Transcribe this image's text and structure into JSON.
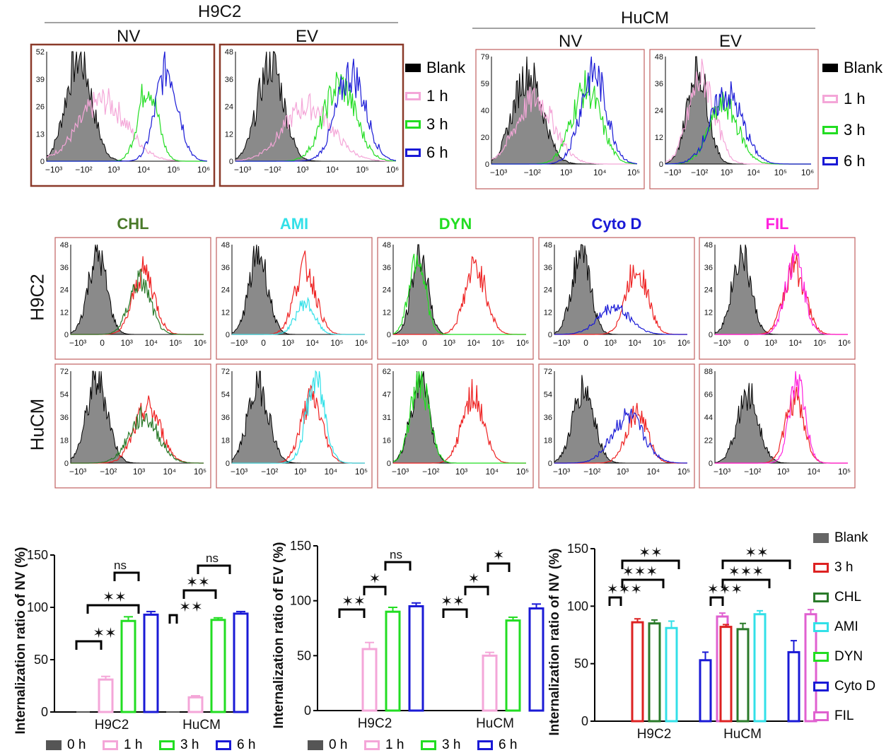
{
  "top_left": {
    "group": "H9C2",
    "panels": [
      "NV",
      "EV"
    ],
    "yticks": [
      [
        52,
        39,
        26,
        13,
        0
      ],
      [
        48,
        36,
        24,
        12,
        0
      ]
    ],
    "xticks": [
      "−10³",
      "−10²",
      "10³",
      "10⁴",
      "10⁵",
      "10⁶"
    ]
  },
  "top_right": {
    "group": "HuCM",
    "panels": [
      "NV",
      "EV"
    ],
    "yticks": [
      [
        79,
        59,
        40,
        20,
        0
      ],
      [
        48,
        36,
        24,
        12,
        0
      ]
    ],
    "xticks_nv": [
      "−10³",
      "−10²",
      "10³",
      "10⁴",
      "10⁵"
    ],
    "xticks_ev": [
      "−10³",
      "−10²",
      "10³",
      "10⁴",
      "10⁵",
      "10⁶"
    ]
  },
  "legend_time": [
    {
      "label": "Blank",
      "color": "#000000"
    },
    {
      "label": "1 h",
      "color": "#f4a6d8"
    },
    {
      "label": "3 h",
      "color": "#22dd22"
    },
    {
      "label": "6 h",
      "color": "#1a1ad6"
    }
  ],
  "middle": {
    "columns": [
      {
        "name": "CHL",
        "color": "#4a7a2a"
      },
      {
        "name": "AMI",
        "color": "#33e0e8"
      },
      {
        "name": "DYN",
        "color": "#22dd22"
      },
      {
        "name": "Cyto D",
        "color": "#1a1ad6"
      },
      {
        "name": "FIL",
        "color": "#ff22dd"
      }
    ],
    "rows": [
      "H9C2",
      "HuCM"
    ],
    "yticks_h9c2": [
      "48",
      "36",
      "24",
      "12",
      "0"
    ],
    "yticks_hucm": [
      [
        "72",
        "54",
        "36",
        "18",
        "0"
      ],
      [
        "72",
        "54",
        "36",
        "18",
        "0"
      ],
      [
        "62",
        "47",
        "31",
        "16",
        "0"
      ],
      [
        "72",
        "54",
        "36",
        "18",
        "0"
      ],
      [
        "88",
        "66",
        "44",
        "22",
        "0"
      ]
    ],
    "xticks_h9c2": [
      "−10³",
      "0",
      "10³",
      "10⁴",
      "10⁵",
      "10⁶"
    ],
    "xticks_hucm": [
      "−10³",
      "−10²",
      "10³",
      "10⁴",
      "10⁵"
    ]
  },
  "chart_data": [
    {
      "type": "bar",
      "ylabel": "Internalization ratio of NV (%)",
      "categories": [
        "H9C2",
        "HuCM"
      ],
      "ylim": [
        0,
        150
      ],
      "yticks": [
        0,
        50,
        100,
        150
      ],
      "series": [
        {
          "name": "0 h",
          "color": "#555555",
          "values": [
            0,
            0
          ]
        },
        {
          "name": "1 h",
          "color": "#f4a6d8",
          "values": [
            31,
            14
          ]
        },
        {
          "name": "3 h",
          "color": "#22dd22",
          "values": [
            87,
            88
          ]
        },
        {
          "name": "6 h",
          "color": "#1a1ad6",
          "values": [
            93,
            94
          ]
        }
      ],
      "errors": [
        [
          0,
          0
        ],
        [
          3,
          1.5
        ],
        [
          4,
          2
        ],
        [
          3,
          2
        ]
      ],
      "annotations": [
        "✶✶",
        "✶✶",
        "ns",
        "✶✶",
        "✶✶",
        "ns"
      ]
    },
    {
      "type": "bar",
      "ylabel": "Internalization ratio of EV (%)",
      "categories": [
        "H9C2",
        "HuCM"
      ],
      "ylim": [
        0,
        150
      ],
      "yticks": [
        0,
        50,
        100,
        150
      ],
      "series": [
        {
          "name": "0 h",
          "color": "#555555",
          "values": [
            0,
            0
          ]
        },
        {
          "name": "1 h",
          "color": "#f4a6d8",
          "values": [
            56,
            50
          ]
        },
        {
          "name": "3 h",
          "color": "#22dd22",
          "values": [
            90,
            82
          ]
        },
        {
          "name": "6 h",
          "color": "#1a1ad6",
          "values": [
            95,
            93
          ]
        }
      ],
      "errors": [
        [
          0,
          0
        ],
        [
          6,
          3
        ],
        [
          4,
          3
        ],
        [
          3,
          4
        ]
      ],
      "annotations": [
        "✶✶",
        "✶",
        "ns",
        "✶✶",
        "✶",
        "✶"
      ]
    },
    {
      "type": "bar",
      "ylabel": "Internalization ratio of NV (%)",
      "categories": [
        "H9C2",
        "HuCM"
      ],
      "ylim": [
        0,
        150
      ],
      "yticks": [
        0,
        50,
        100,
        150
      ],
      "series": [
        {
          "name": "Blank",
          "color": "#666666",
          "values": [
            0,
            0
          ]
        },
        {
          "name": "3 h",
          "color": "#dd2222",
          "values": [
            86,
            82
          ]
        },
        {
          "name": "CHL",
          "color": "#2a7a2a",
          "values": [
            85,
            80
          ]
        },
        {
          "name": "AMI",
          "color": "#33e0e8",
          "values": [
            81,
            93
          ]
        },
        {
          "name": "DYN",
          "color": "#22dd22",
          "values": [
            0,
            0
          ]
        },
        {
          "name": "Cyto D",
          "color": "#1a1ad6",
          "values": [
            53,
            60
          ]
        },
        {
          "name": "FIL",
          "color": "#e060d0",
          "values": [
            91,
            93
          ]
        }
      ],
      "errors": [
        [
          0,
          0
        ],
        [
          3,
          2
        ],
        [
          3,
          5
        ],
        [
          6,
          3
        ],
        [
          0,
          0
        ],
        [
          7,
          10
        ],
        [
          3,
          4
        ]
      ],
      "annotations": [
        "✶✶✶",
        "✶✶✶",
        "✶✶",
        "✶✶✶",
        "✶✶✶",
        "✶✶"
      ]
    }
  ]
}
